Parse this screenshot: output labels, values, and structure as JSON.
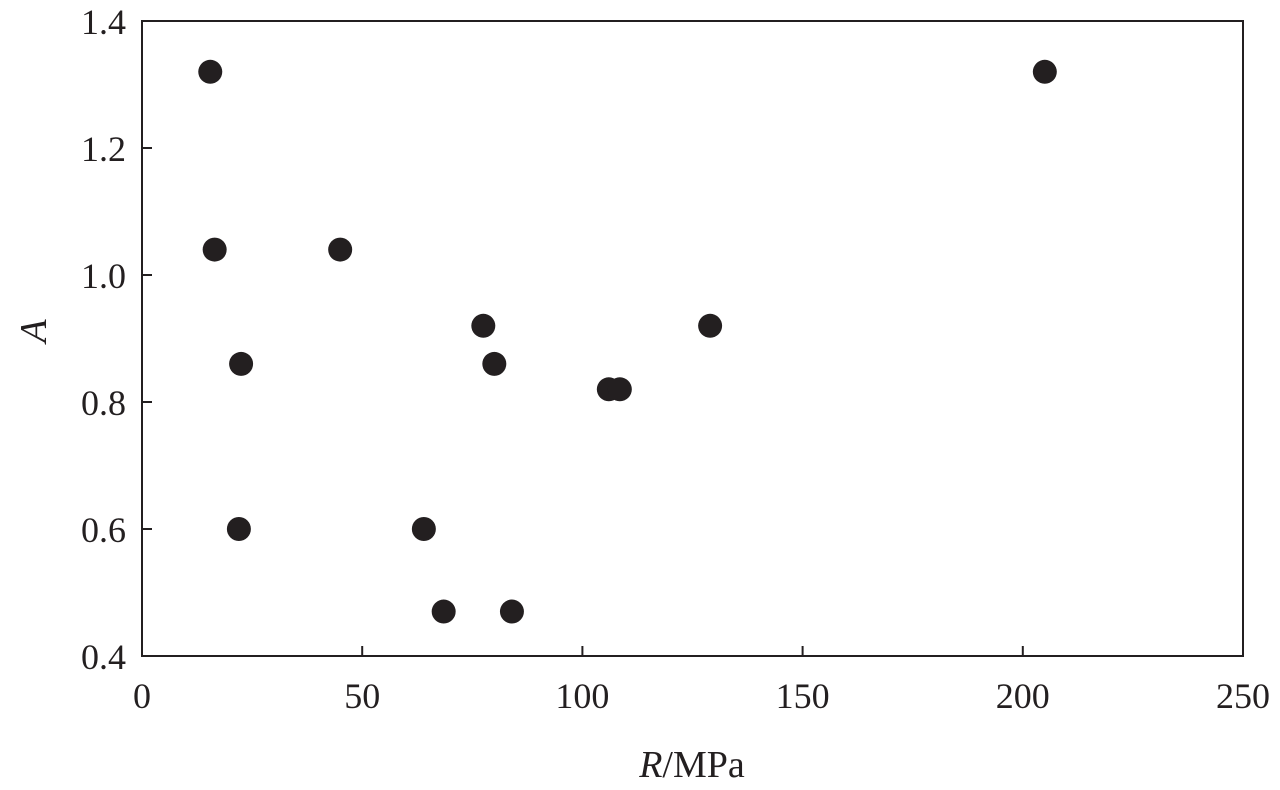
{
  "chart_data": {
    "type": "scatter",
    "title": "",
    "xlabel_var": "R",
    "xlabel_unit": "/MPa",
    "ylabel": "A",
    "xlim": [
      0,
      250
    ],
    "ylim": [
      0.4,
      1.4
    ],
    "xticks": [
      "0",
      "50",
      "100",
      "150",
      "200",
      "250"
    ],
    "yticks": [
      "0.4",
      "0.6",
      "0.8",
      "1.0",
      "1.2",
      "1.4"
    ],
    "grid": false,
    "legend": "none",
    "marker_color": "#231f20",
    "points": [
      {
        "x": 15.5,
        "y": 1.32
      },
      {
        "x": 205,
        "y": 1.32
      },
      {
        "x": 16.5,
        "y": 1.04
      },
      {
        "x": 45,
        "y": 1.04
      },
      {
        "x": 77.5,
        "y": 0.92
      },
      {
        "x": 129,
        "y": 0.92
      },
      {
        "x": 22.5,
        "y": 0.86
      },
      {
        "x": 80,
        "y": 0.86
      },
      {
        "x": 106,
        "y": 0.82
      },
      {
        "x": 108.5,
        "y": 0.82
      },
      {
        "x": 22,
        "y": 0.6
      },
      {
        "x": 64,
        "y": 0.6
      },
      {
        "x": 68.5,
        "y": 0.47
      },
      {
        "x": 84,
        "y": 0.47
      }
    ]
  }
}
